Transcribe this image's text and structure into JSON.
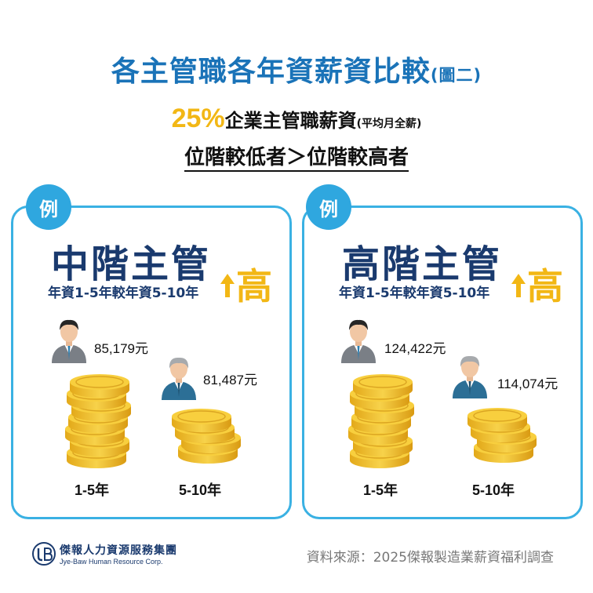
{
  "title": "各主管職各年資薪資比較",
  "title_note": "(圖二)",
  "subtitle": {
    "percent": "25%",
    "main": "企業主管職薪資",
    "note": "(平均月全薪)"
  },
  "comparison": "位階較低者＞位階較高者",
  "cards": [
    {
      "badge": "例",
      "title": "中階主管",
      "description": "年資1-5年較年資5-10年",
      "emphasis": "高",
      "junior": {
        "salary": "85,179元",
        "year_label": "1-5年"
      },
      "senior": {
        "salary": "81,487元",
        "year_label": "5-10年"
      }
    },
    {
      "badge": "例",
      "title": "高階主管",
      "description": "年資1-5年較年資5-10年",
      "emphasis": "高",
      "junior": {
        "salary": "124,422元",
        "year_label": "1-5年"
      },
      "senior": {
        "salary": "114,074元",
        "year_label": "5-10年"
      }
    }
  ],
  "footer": {
    "logo_name": "傑報人力資源服務集團",
    "logo_en": "Jye-Baw Human Resource Corp.",
    "source": "資料來源：2025傑報製造業薪資福利調查"
  },
  "colors": {
    "title_blue": "#1a73b8",
    "accent_yellow": "#f2b715",
    "card_border": "#3ab1e3",
    "badge_blue": "#2fa7df",
    "navy": "#1a3a6e"
  },
  "icons": [
    "person-dark-suit-icon",
    "person-gray-hair-icon",
    "coin-stack-icon",
    "up-arrow-icon",
    "company-logo-icon"
  ]
}
